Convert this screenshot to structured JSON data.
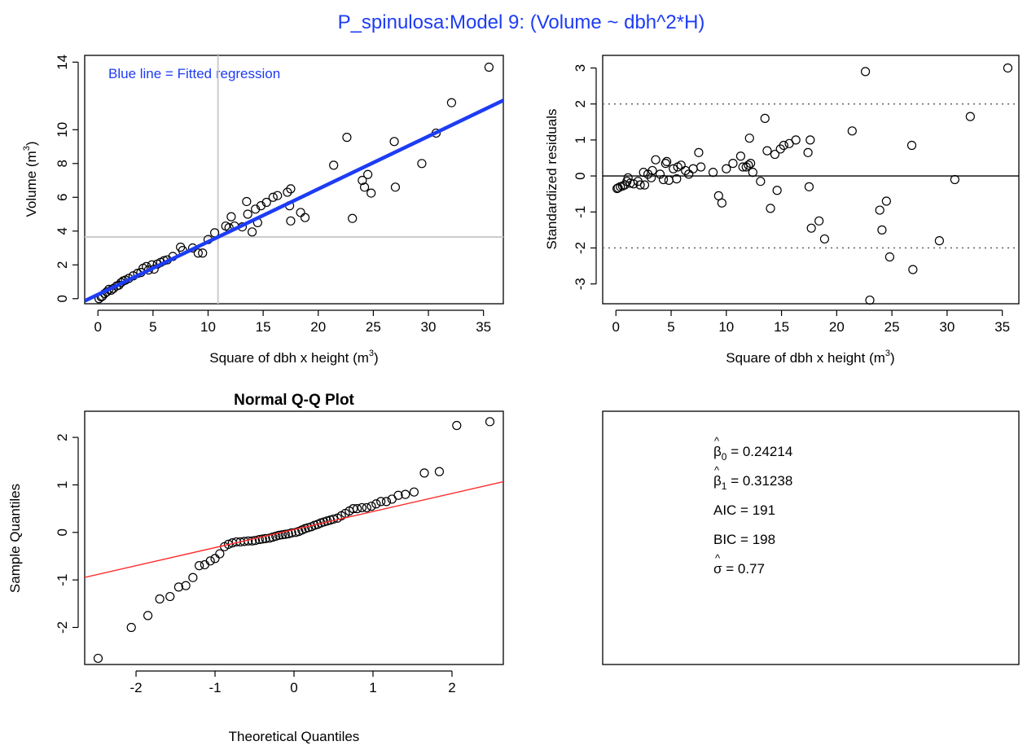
{
  "title": "P_spinulosa:Model 9: (Volume ~ dbh^2*H)",
  "colors": {
    "title": "#1d3cf5",
    "fit_line": "#1d3cf5",
    "qq_line": "#ff2a2a",
    "ref_lines": "#cccccc",
    "points": "#000000"
  },
  "chart_data": [
    {
      "type": "scatter",
      "title": "",
      "xlabel": "Square of dbh x height (m",
      "xlabel_sup": "3",
      "xlabel_close": ")",
      "ylabel": "Volume (m",
      "ylabel_sup": "3",
      "ylabel_close": ")",
      "annotation": "Blue line = Fitted regression",
      "xlim": [
        -1.2,
        36.8
      ],
      "ylim": [
        -0.3,
        14.4
      ],
      "xticks": [
        0,
        5,
        10,
        15,
        20,
        25,
        30,
        35
      ],
      "yticks": [
        0,
        2,
        4,
        6,
        8,
        10,
        14
      ],
      "fit": {
        "intercept": 0.24214,
        "slope": 0.31238
      },
      "ref_lines": {
        "x": 10.9,
        "y": 3.65
      },
      "points": [
        [
          0.1,
          0.0
        ],
        [
          0.3,
          0.1
        ],
        [
          0.4,
          0.15
        ],
        [
          0.6,
          0.3
        ],
        [
          0.8,
          0.4
        ],
        [
          1.0,
          0.55
        ],
        [
          1.2,
          0.5
        ],
        [
          1.4,
          0.6
        ],
        [
          1.7,
          0.75
        ],
        [
          1.9,
          0.8
        ],
        [
          2.1,
          0.95
        ],
        [
          2.3,
          1.05
        ],
        [
          2.5,
          1.1
        ],
        [
          2.8,
          1.2
        ],
        [
          3.2,
          1.35
        ],
        [
          3.6,
          1.5
        ],
        [
          3.9,
          1.55
        ],
        [
          4.1,
          1.8
        ],
        [
          4.4,
          1.9
        ],
        [
          4.6,
          1.7
        ],
        [
          4.9,
          2.0
        ],
        [
          5.1,
          1.75
        ],
        [
          5.4,
          2.05
        ],
        [
          5.7,
          2.15
        ],
        [
          6.0,
          2.25
        ],
        [
          6.3,
          2.3
        ],
        [
          6.8,
          2.5
        ],
        [
          7.5,
          3.05
        ],
        [
          7.7,
          2.85
        ],
        [
          8.6,
          3.0
        ],
        [
          9.1,
          2.7
        ],
        [
          9.5,
          2.7
        ],
        [
          10.0,
          3.5
        ],
        [
          10.6,
          3.9
        ],
        [
          11.6,
          4.3
        ],
        [
          11.9,
          4.2
        ],
        [
          12.1,
          4.85
        ],
        [
          12.4,
          4.3
        ],
        [
          13.1,
          4.25
        ],
        [
          13.5,
          5.75
        ],
        [
          13.6,
          5.0
        ],
        [
          14.0,
          3.95
        ],
        [
          14.3,
          5.3
        ],
        [
          14.5,
          4.5
        ],
        [
          14.8,
          5.5
        ],
        [
          15.3,
          5.7
        ],
        [
          15.9,
          6.0
        ],
        [
          16.3,
          6.1
        ],
        [
          17.2,
          6.3
        ],
        [
          17.4,
          5.5
        ],
        [
          17.5,
          6.5
        ],
        [
          17.5,
          4.6
        ],
        [
          18.4,
          5.1
        ],
        [
          18.8,
          4.8
        ],
        [
          21.4,
          7.9
        ],
        [
          22.6,
          9.55
        ],
        [
          23.1,
          4.75
        ],
        [
          24.0,
          7.0
        ],
        [
          24.2,
          6.6
        ],
        [
          24.5,
          7.35
        ],
        [
          24.8,
          6.25
        ],
        [
          26.9,
          9.3
        ],
        [
          27.0,
          6.6
        ],
        [
          29.4,
          8.0
        ],
        [
          30.7,
          9.8
        ],
        [
          32.1,
          11.6
        ],
        [
          35.5,
          13.7
        ]
      ]
    },
    {
      "type": "scatter",
      "title": "",
      "xlabel": "Square of dbh x height (m",
      "xlabel_sup": "3",
      "xlabel_close": ")",
      "ylabel": "Standardized residuals",
      "xlim": [
        -1.2,
        36.5
      ],
      "ylim": [
        -3.55,
        3.35
      ],
      "xticks": [
        0,
        5,
        10,
        15,
        20,
        25,
        30,
        35
      ],
      "yticks": [
        -3,
        -2,
        -1,
        0,
        1,
        2,
        3
      ],
      "hlines_dotted": [
        2,
        -2
      ],
      "hline_solid": 0,
      "points": [
        [
          0.1,
          -0.35
        ],
        [
          0.2,
          -0.33
        ],
        [
          0.4,
          -0.3
        ],
        [
          0.6,
          -0.28
        ],
        [
          0.8,
          -0.25
        ],
        [
          1.0,
          -0.15
        ],
        [
          1.1,
          -0.05
        ],
        [
          1.3,
          -0.2
        ],
        [
          1.6,
          -0.22
        ],
        [
          2.0,
          -0.15
        ],
        [
          2.2,
          -0.25
        ],
        [
          2.5,
          0.1
        ],
        [
          2.6,
          -0.25
        ],
        [
          2.9,
          0.05
        ],
        [
          3.2,
          -0.05
        ],
        [
          3.3,
          0.15
        ],
        [
          3.6,
          0.45
        ],
        [
          4.0,
          0.05
        ],
        [
          4.3,
          -0.1
        ],
        [
          4.5,
          0.35
        ],
        [
          4.6,
          0.4
        ],
        [
          4.8,
          -0.12
        ],
        [
          5.2,
          0.2
        ],
        [
          5.5,
          -0.08
        ],
        [
          5.6,
          0.25
        ],
        [
          5.9,
          0.3
        ],
        [
          6.3,
          0.15
        ],
        [
          6.6,
          0.05
        ],
        [
          7.0,
          0.2
        ],
        [
          7.5,
          0.65
        ],
        [
          7.7,
          0.25
        ],
        [
          8.8,
          0.1
        ],
        [
          9.3,
          -0.55
        ],
        [
          9.6,
          -0.75
        ],
        [
          10.0,
          0.2
        ],
        [
          10.6,
          0.35
        ],
        [
          11.3,
          0.55
        ],
        [
          11.5,
          0.25
        ],
        [
          11.8,
          0.25
        ],
        [
          12.0,
          0.3
        ],
        [
          12.1,
          1.05
        ],
        [
          12.2,
          0.35
        ],
        [
          12.4,
          0.1
        ],
        [
          13.1,
          -0.15
        ],
        [
          13.5,
          1.6
        ],
        [
          13.7,
          0.7
        ],
        [
          14.0,
          -0.9
        ],
        [
          14.4,
          0.6
        ],
        [
          14.6,
          -0.4
        ],
        [
          14.9,
          0.75
        ],
        [
          15.2,
          0.85
        ],
        [
          15.7,
          0.9
        ],
        [
          16.3,
          1.0
        ],
        [
          17.4,
          0.65
        ],
        [
          17.5,
          -0.3
        ],
        [
          17.6,
          1.0
        ],
        [
          17.7,
          -1.45
        ],
        [
          18.4,
          -1.25
        ],
        [
          18.9,
          -1.75
        ],
        [
          21.4,
          1.25
        ],
        [
          22.6,
          2.9
        ],
        [
          23.0,
          -3.45
        ],
        [
          23.9,
          -0.95
        ],
        [
          24.1,
          -1.5
        ],
        [
          24.5,
          -0.7
        ],
        [
          24.8,
          -2.25
        ],
        [
          26.8,
          0.85
        ],
        [
          26.9,
          -2.6
        ],
        [
          29.3,
          -1.8
        ],
        [
          30.7,
          -0.1
        ],
        [
          32.1,
          1.65
        ],
        [
          35.5,
          3.0
        ]
      ]
    },
    {
      "type": "scatter",
      "title": "Normal Q-Q Plot",
      "xlabel": "Theoretical Quantiles",
      "ylabel": "Sample Quantiles",
      "xlim": [
        -2.65,
        2.65
      ],
      "ylim": [
        -2.78,
        2.55
      ],
      "xticks": [
        -2,
        -1,
        0,
        1,
        2
      ],
      "yticks": [
        -2,
        -1,
        0,
        1,
        2
      ],
      "qq_line": {
        "intercept": 0.06,
        "slope": 0.38
      },
      "points": [
        [
          -2.48,
          -2.65
        ],
        [
          -2.06,
          -2.0
        ],
        [
          -1.85,
          -1.75
        ],
        [
          -1.7,
          -1.4
        ],
        [
          -1.57,
          -1.35
        ],
        [
          -1.46,
          -1.15
        ],
        [
          -1.37,
          -1.12
        ],
        [
          -1.28,
          -0.95
        ],
        [
          -1.2,
          -0.7
        ],
        [
          -1.13,
          -0.68
        ],
        [
          -1.06,
          -0.6
        ],
        [
          -1.0,
          -0.55
        ],
        [
          -0.94,
          -0.45
        ],
        [
          -0.88,
          -0.3
        ],
        [
          -0.83,
          -0.25
        ],
        [
          -0.78,
          -0.22
        ],
        [
          -0.73,
          -0.2
        ],
        [
          -0.68,
          -0.2
        ],
        [
          -0.63,
          -0.19
        ],
        [
          -0.58,
          -0.18
        ],
        [
          -0.53,
          -0.18
        ],
        [
          -0.49,
          -0.17
        ],
        [
          -0.44,
          -0.15
        ],
        [
          -0.4,
          -0.14
        ],
        [
          -0.36,
          -0.13
        ],
        [
          -0.31,
          -0.12
        ],
        [
          -0.27,
          -0.1
        ],
        [
          -0.23,
          -0.08
        ],
        [
          -0.19,
          -0.06
        ],
        [
          -0.15,
          -0.05
        ],
        [
          -0.11,
          -0.04
        ],
        [
          -0.07,
          -0.03
        ],
        [
          -0.03,
          -0.01
        ],
        [
          0.02,
          0.0
        ],
        [
          0.06,
          0.02
        ],
        [
          0.1,
          0.05
        ],
        [
          0.14,
          0.08
        ],
        [
          0.18,
          0.1
        ],
        [
          0.22,
          0.12
        ],
        [
          0.26,
          0.15
        ],
        [
          0.3,
          0.17
        ],
        [
          0.34,
          0.2
        ],
        [
          0.38,
          0.22
        ],
        [
          0.42,
          0.24
        ],
        [
          0.46,
          0.26
        ],
        [
          0.5,
          0.28
        ],
        [
          0.55,
          0.3
        ],
        [
          0.6,
          0.35
        ],
        [
          0.65,
          0.4
        ],
        [
          0.7,
          0.45
        ],
        [
          0.75,
          0.5
        ],
        [
          0.8,
          0.5
        ],
        [
          0.86,
          0.52
        ],
        [
          0.92,
          0.52
        ],
        [
          0.98,
          0.55
        ],
        [
          1.04,
          0.6
        ],
        [
          1.1,
          0.65
        ],
        [
          1.17,
          0.65
        ],
        [
          1.24,
          0.7
        ],
        [
          1.32,
          0.78
        ],
        [
          1.41,
          0.8
        ],
        [
          1.52,
          0.85
        ],
        [
          1.65,
          1.25
        ],
        [
          1.84,
          1.28
        ],
        [
          2.06,
          2.25
        ],
        [
          2.48,
          2.33
        ]
      ]
    }
  ],
  "stats_box": [
    {
      "symbol": "β",
      "sub": "0",
      "value": " = 0.24214"
    },
    {
      "symbol": "β",
      "sub": "1",
      "value": " = 0.31238"
    },
    {
      "symbol": "",
      "sub": "",
      "value": "AIC = 191"
    },
    {
      "symbol": "",
      "sub": "",
      "value": "BIC = 198"
    },
    {
      "symbol": "σ",
      "sub": "",
      "value": " = 0.77"
    }
  ]
}
